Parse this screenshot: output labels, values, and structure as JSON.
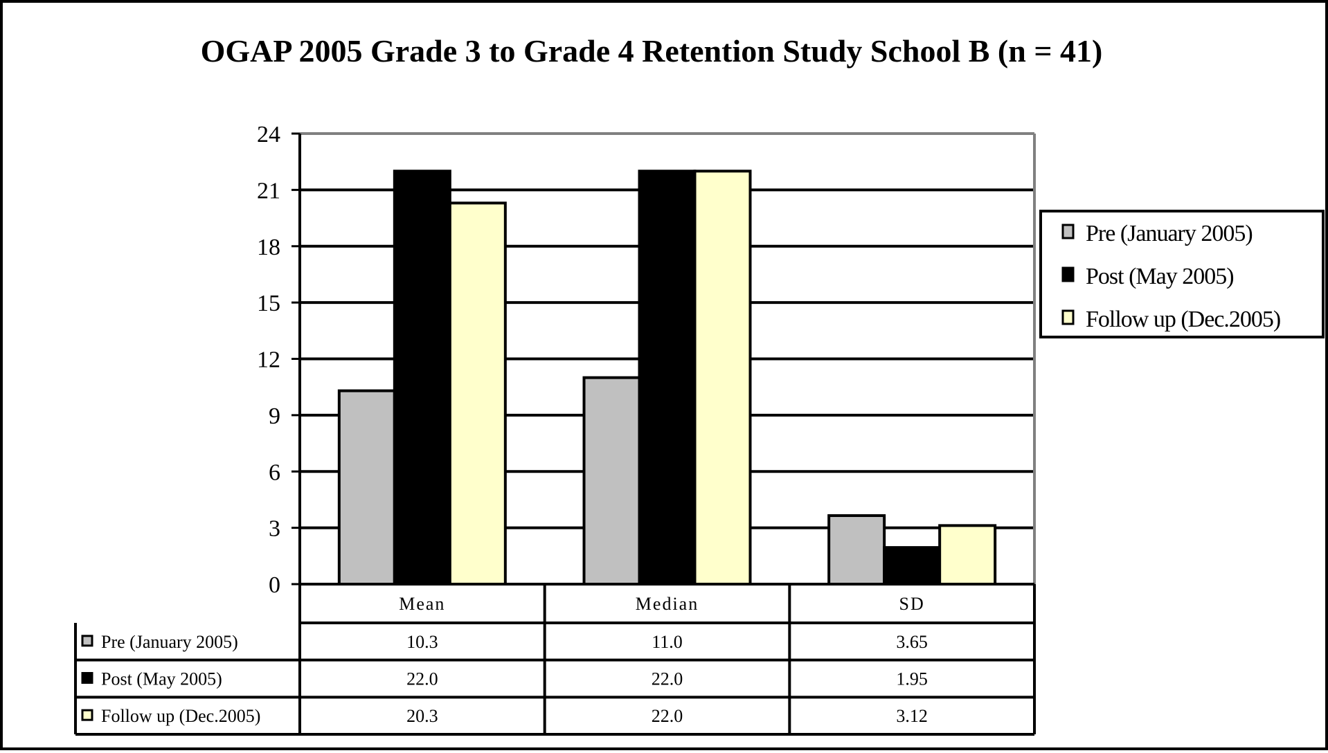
{
  "chart_data": {
    "type": "bar",
    "title": "OGAP 2005 Grade 3 to Grade 4 Retention Study School B  (n = 41)",
    "categories": [
      "Mean",
      "Median",
      "SD"
    ],
    "series": [
      {
        "name": "Pre (January 2005)",
        "values": [
          10.3,
          11.0,
          3.65
        ],
        "color": "#c0c0c0",
        "labels": [
          "10.3",
          "11.0",
          "3.65"
        ]
      },
      {
        "name": "Post (May 2005)",
        "values": [
          22.0,
          22.0,
          1.95
        ],
        "color": "#000000",
        "labels": [
          "22.0",
          "22.0",
          "1.95"
        ]
      },
      {
        "name": "Follow up (Dec.2005)",
        "values": [
          20.3,
          22.0,
          3.12
        ],
        "color": "#ffffcc",
        "labels": [
          "20.3",
          "22.0",
          "3.12"
        ]
      }
    ],
    "ylim": [
      0,
      24
    ],
    "yticks": [
      0,
      3,
      6,
      9,
      12,
      15,
      18,
      21,
      24
    ],
    "xlabel": "",
    "ylabel": "",
    "grid": true,
    "legend": "right",
    "data_table": true
  }
}
